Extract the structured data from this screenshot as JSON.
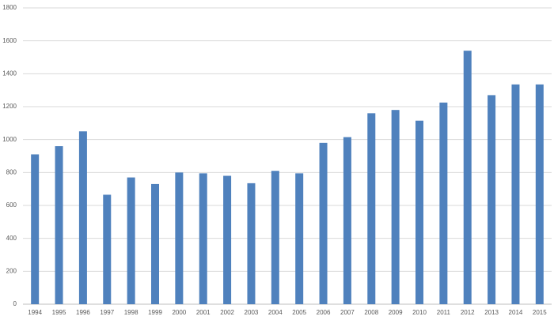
{
  "chart_data": {
    "type": "bar",
    "categories": [
      "1994",
      "1995",
      "1996",
      "1997",
      "1998",
      "1999",
      "2000",
      "2001",
      "2002",
      "2003",
      "2004",
      "2005",
      "2006",
      "2007",
      "2008",
      "2009",
      "2010",
      "2011",
      "2012",
      "2013",
      "2014",
      "2015"
    ],
    "values": [
      910,
      960,
      1050,
      665,
      770,
      730,
      800,
      795,
      780,
      735,
      810,
      795,
      980,
      1015,
      1160,
      1180,
      1115,
      1225,
      1540,
      1270,
      1335,
      1335
    ],
    "color": "#4f81bd",
    "ylim": [
      0,
      1800
    ],
    "yticks": [
      0,
      200,
      400,
      600,
      800,
      1000,
      1200,
      1400,
      1600,
      1800
    ],
    "grid": true
  }
}
